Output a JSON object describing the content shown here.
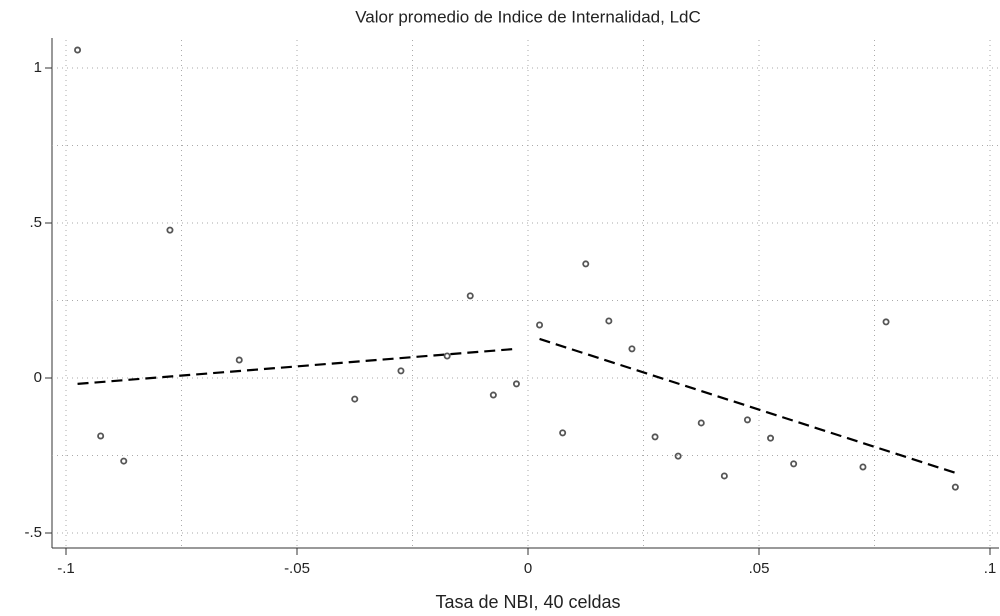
{
  "chart_data": {
    "type": "scatter",
    "title": "Valor promedio de Indice de Internalidad, LdC",
    "x_label": "Tasa de NBI, 40 celdas",
    "xlim": [
      -0.1,
      0.1
    ],
    "ylim": [
      -0.5,
      1
    ],
    "xticks": [
      {
        "value": -0.1,
        "label": "-.1"
      },
      {
        "value": -0.05,
        "label": "-.05"
      },
      0,
      {
        "value": 0.05,
        "label": ".05"
      },
      {
        "value": 0.1,
        "label": ".1"
      }
    ],
    "yticks": [
      {
        "value": -0.5,
        "label": "-.5"
      },
      0,
      {
        "value": 0.5,
        "label": ".5"
      },
      1
    ],
    "xminorticks": [
      -0.075,
      -0.025,
      0.025,
      0.075
    ],
    "yminorticks": [
      -0.25,
      0.25,
      0.75
    ],
    "grid": true,
    "points": {
      "color": "#555555",
      "x": [
        -0.0975,
        -0.0925,
        -0.0875,
        -0.0775,
        -0.0625,
        -0.0375,
        -0.0275,
        -0.0175,
        -0.0125,
        -0.0075,
        -0.0025,
        0.0025,
        0.0075,
        0.0125,
        0.0175,
        0.0225,
        0.0275,
        0.0325,
        0.0375,
        0.0425,
        0.0475,
        0.0525,
        0.0575,
        0.0725,
        0.0775,
        0.0925
      ],
      "values": [
        1.058,
        -0.187,
        -0.268,
        0.477,
        0.058,
        -0.068,
        0.023,
        0.071,
        0.265,
        -0.055,
        -0.019,
        0.171,
        -0.177,
        0.368,
        0.184,
        0.094,
        -0.19,
        -0.252,
        -0.145,
        -0.316,
        -0.135,
        -0.194,
        -0.277,
        -0.287,
        0.181,
        -0.352
      ]
    },
    "fits": [
      {
        "color": "#000000",
        "x": [
          -0.0975,
          -0.0025
        ],
        "values": [
          -0.019,
          0.094
        ]
      },
      {
        "color": "#000000",
        "x": [
          0.0025,
          0.0925
        ],
        "values": [
          0.126,
          -0.306
        ]
      }
    ]
  }
}
